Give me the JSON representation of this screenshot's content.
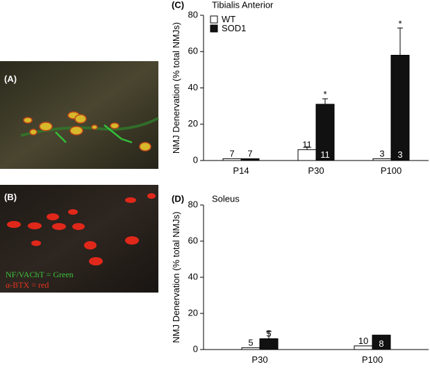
{
  "panels": [
    {
      "label": "(A)"
    },
    {
      "label": "(B)",
      "legend_lines": [
        "NF/VAChT = Green",
        "α-BTX = red"
      ]
    }
  ],
  "chart_data": [
    {
      "type": "bar",
      "panel_label": "(C)",
      "title": "Tibialis Anterior",
      "y_label": "NMJ Denervation (% total NMJs)",
      "categories": [
        "P14",
        "P30",
        "P100"
      ],
      "series": [
        {
          "name": "WT",
          "color": "#ffffff",
          "values": [
            1,
            6,
            1
          ],
          "errors": [
            null,
            1.5,
            null
          ],
          "n": [
            7,
            11,
            3
          ]
        },
        {
          "name": "SOD1",
          "color": "#111111",
          "values": [
            1,
            31,
            58
          ],
          "errors": [
            null,
            3,
            15
          ],
          "n": [
            7,
            11,
            3
          ]
        }
      ],
      "significance": [
        null,
        "*",
        "*"
      ],
      "ylim": [
        0,
        80
      ],
      "yticks": [
        0,
        20,
        40,
        60,
        80
      ],
      "legend": "upper left"
    },
    {
      "type": "bar",
      "panel_label": "(D)",
      "title": "Soleus",
      "y_label": "NMJ Denervation (% total NMJs)",
      "categories": [
        "P30",
        "P100"
      ],
      "series": [
        {
          "name": "WT",
          "color": "#ffffff",
          "values": [
            1,
            2
          ],
          "errors": [
            null,
            null
          ],
          "n": [
            5,
            10
          ]
        },
        {
          "name": "SOD1",
          "color": "#111111",
          "values": [
            6,
            8
          ],
          "errors": [
            4,
            null
          ],
          "n": [
            5,
            8
          ]
        }
      ],
      "ylim": [
        0,
        80
      ],
      "yticks": [
        0,
        20,
        40,
        60,
        80
      ],
      "legend": "none"
    }
  ]
}
